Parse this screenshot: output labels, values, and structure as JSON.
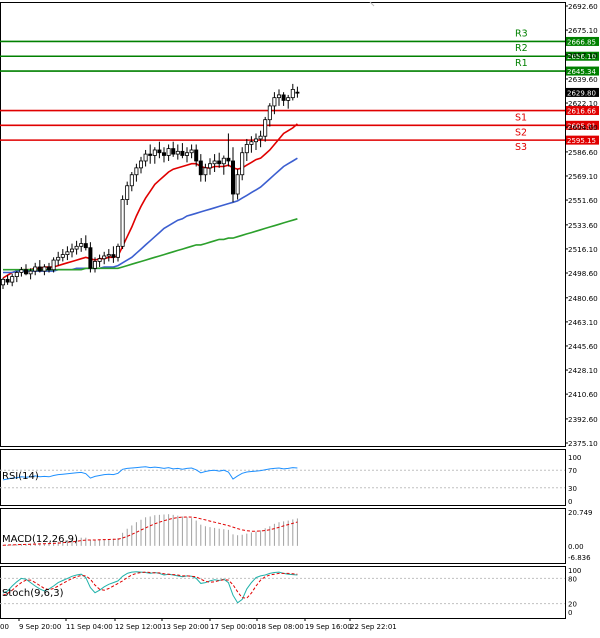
{
  "chart_data": {
    "type": "candlestick",
    "price_axis": {
      "min": 2375.1,
      "max": 2692.6,
      "ticks": [
        "2692.60",
        "2675.10",
        "2657.10",
        "2639.60",
        "2622.10",
        "2604.60",
        "2586.60",
        "2569.10",
        "2551.60",
        "2533.60",
        "2516.10",
        "2498.60",
        "2480.60",
        "2463.10",
        "2445.60",
        "2428.10",
        "2410.60",
        "2392.60",
        "2375.10"
      ]
    },
    "x_labels": [
      "9 Sep 20:00",
      "11 Sep 04:00",
      "12 Sep 12:00",
      "13 Sep 20:00",
      "17 Sep 00:00",
      "18 Sep 08:00",
      "19 Sep 16:00",
      "22 Sep 22:01"
    ],
    "x_label_left_fragment": "00",
    "last_price": "2629.80",
    "levels": [
      {
        "name": "R3",
        "value": 2666.85,
        "label": "2666.85",
        "color": "#008000"
      },
      {
        "name": "R2",
        "value": 2656.1,
        "label": "2656.10",
        "color": "#008000"
      },
      {
        "name": "R1",
        "value": 2645.34,
        "label": "2645.34",
        "color": "#008000"
      },
      {
        "name": "S1",
        "value": 2616.66,
        "label": "2616.66",
        "color": "#e00000"
      },
      {
        "name": "S2",
        "value": 2605.91,
        "label": "2605.91",
        "color": "#e00000"
      },
      {
        "name": "S3",
        "value": 2595.15,
        "label": "2595.15",
        "color": "#e00000"
      }
    ],
    "candles": [
      [
        2490,
        2495,
        2487,
        2494
      ],
      [
        2494,
        2497,
        2490,
        2492
      ],
      [
        2492,
        2498,
        2489,
        2496
      ],
      [
        2496,
        2500,
        2492,
        2499
      ],
      [
        2499,
        2503,
        2496,
        2501
      ],
      [
        2501,
        2505,
        2497,
        2498
      ],
      [
        2498,
        2502,
        2494,
        2500
      ],
      [
        2500,
        2506,
        2497,
        2503
      ],
      [
        2503,
        2508,
        2499,
        2500
      ],
      [
        2500,
        2505,
        2497,
        2503
      ],
      [
        2503,
        2506,
        2499,
        2501
      ],
      [
        2501,
        2510,
        2499,
        2508
      ],
      [
        2508,
        2514,
        2504,
        2510
      ],
      [
        2510,
        2516,
        2507,
        2512
      ],
      [
        2512,
        2518,
        2508,
        2514
      ],
      [
        2514,
        2520,
        2510,
        2516
      ],
      [
        2516,
        2522,
        2512,
        2518
      ],
      [
        2518,
        2524,
        2514,
        2520
      ],
      [
        2520,
        2526,
        2515,
        2517
      ],
      [
        2517,
        2521,
        2499,
        2502
      ],
      [
        2502,
        2510,
        2499,
        2507
      ],
      [
        2507,
        2512,
        2503,
        2509
      ],
      [
        2509,
        2514,
        2505,
        2511
      ],
      [
        2511,
        2516,
        2507,
        2512
      ],
      [
        2512,
        2518,
        2506,
        2510
      ],
      [
        2510,
        2520,
        2507,
        2518
      ],
      [
        2518,
        2555,
        2516,
        2552
      ],
      [
        2552,
        2565,
        2548,
        2562
      ],
      [
        2562,
        2572,
        2558,
        2570
      ],
      [
        2570,
        2578,
        2565,
        2575
      ],
      [
        2575,
        2583,
        2571,
        2580
      ],
      [
        2580,
        2588,
        2576,
        2585
      ],
      [
        2585,
        2592,
        2578,
        2584
      ],
      [
        2584,
        2590,
        2578,
        2588
      ],
      [
        2588,
        2594,
        2582,
        2586
      ],
      [
        2586,
        2590,
        2579,
        2584
      ],
      [
        2584,
        2592,
        2580,
        2589
      ],
      [
        2589,
        2594,
        2583,
        2585
      ],
      [
        2585,
        2592,
        2581,
        2587
      ],
      [
        2587,
        2593,
        2582,
        2584
      ],
      [
        2584,
        2590,
        2579,
        2586
      ],
      [
        2586,
        2592,
        2582,
        2588
      ],
      [
        2588,
        2592,
        2576,
        2580
      ],
      [
        2580,
        2585,
        2565,
        2570
      ],
      [
        2570,
        2578,
        2565,
        2575
      ],
      [
        2575,
        2582,
        2570,
        2578
      ],
      [
        2578,
        2585,
        2572,
        2580
      ],
      [
        2580,
        2586,
        2575,
        2578
      ],
      [
        2578,
        2584,
        2570,
        2582
      ],
      [
        2582,
        2600,
        2576,
        2580
      ],
      [
        2580,
        2590,
        2550,
        2556
      ],
      [
        2556,
        2574,
        2552,
        2570
      ],
      [
        2570,
        2590,
        2566,
        2586
      ],
      [
        2586,
        2596,
        2580,
        2592
      ],
      [
        2592,
        2598,
        2586,
        2594
      ],
      [
        2594,
        2600,
        2588,
        2596
      ],
      [
        2596,
        2602,
        2590,
        2598
      ],
      [
        2598,
        2612,
        2594,
        2610
      ],
      [
        2610,
        2622,
        2605,
        2620
      ],
      [
        2620,
        2630,
        2614,
        2626
      ],
      [
        2626,
        2632,
        2620,
        2628
      ],
      [
        2628,
        2630,
        2620,
        2624
      ],
      [
        2624,
        2628,
        2618,
        2626
      ],
      [
        2626,
        2636,
        2624,
        2632
      ],
      [
        2630,
        2634,
        2626,
        2629.8
      ]
    ],
    "ma_series": [
      {
        "name": "MA fast",
        "color": "#e00000",
        "values": [
          2495,
          2497,
          2499,
          2500,
          2501,
          2501,
          2501,
          2502,
          2502,
          2503,
          2503,
          2503,
          2504,
          2505,
          2506,
          2507,
          2508,
          2509,
          2510,
          2509,
          2508,
          2509,
          2509,
          2510,
          2510,
          2511,
          2518,
          2525,
          2532,
          2540,
          2547,
          2553,
          2558,
          2563,
          2566,
          2569,
          2572,
          2574,
          2575,
          2576,
          2577,
          2578,
          2578,
          2576,
          2575,
          2575,
          2576,
          2576,
          2576,
          2577,
          2575,
          2574,
          2575,
          2577,
          2579,
          2581,
          2582,
          2585,
          2588,
          2592,
          2596,
          2600,
          2602,
          2604,
          2607
        ]
      },
      {
        "name": "MA medium",
        "color": "#3c5fd0",
        "values": [
          2499,
          2499,
          2499,
          2500,
          2500,
          2500,
          2500,
          2500,
          2500,
          2500,
          2500,
          2500,
          2501,
          2501,
          2501,
          2501,
          2502,
          2502,
          2502,
          2502,
          2502,
          2502,
          2503,
          2503,
          2503,
          2504,
          2506,
          2508,
          2510,
          2513,
          2516,
          2519,
          2522,
          2525,
          2528,
          2531,
          2533,
          2535,
          2537,
          2538,
          2540,
          2541,
          2542,
          2543,
          2544,
          2545,
          2546,
          2547,
          2548,
          2549,
          2550,
          2551,
          2553,
          2555,
          2557,
          2559,
          2561,
          2564,
          2567,
          2570,
          2573,
          2576,
          2578,
          2580,
          2582
        ]
      },
      {
        "name": "MA slow",
        "color": "#2ca02c",
        "values": [
          2501,
          2501,
          2501,
          2501,
          2501,
          2501,
          2501,
          2501,
          2501,
          2501,
          2501,
          2501,
          2501,
          2501,
          2501,
          2501,
          2501,
          2501,
          2502,
          2502,
          2502,
          2502,
          2502,
          2502,
          2502,
          2502,
          2503,
          2504,
          2505,
          2506,
          2507,
          2508,
          2509,
          2510,
          2511,
          2512,
          2513,
          2514,
          2515,
          2516,
          2517,
          2518,
          2519,
          2519,
          2520,
          2521,
          2522,
          2523,
          2523,
          2524,
          2524,
          2525,
          2526,
          2527,
          2528,
          2529,
          2530,
          2531,
          2532,
          2533,
          2534,
          2535,
          2536,
          2537,
          2538
        ]
      }
    ],
    "rsi": {
      "label": "RSI(14)",
      "ticks": [
        "100",
        "70",
        "30",
        "0"
      ],
      "levels": [
        70,
        30
      ],
      "values": [
        48,
        50,
        52,
        53,
        55,
        54,
        55,
        57,
        55,
        56,
        55,
        58,
        60,
        61,
        62,
        63,
        64,
        65,
        62,
        52,
        56,
        58,
        60,
        61,
        60,
        63,
        72,
        74,
        75,
        76,
        77,
        78,
        76,
        77,
        76,
        74,
        76,
        73,
        74,
        72,
        74,
        75,
        71,
        64,
        67,
        69,
        70,
        68,
        70,
        66,
        50,
        57,
        63,
        66,
        67,
        68,
        69,
        71,
        73,
        74,
        75,
        73,
        74,
        76,
        75
      ]
    },
    "macd": {
      "label": "MACD(12,26,9)",
      "ticks": [
        "20.749",
        "0.00",
        "-6.836"
      ],
      "range": [
        -6.836,
        20.749
      ],
      "histogram": [
        0.5,
        0.6,
        0.8,
        1.0,
        1.2,
        1.2,
        1.3,
        1.5,
        1.5,
        1.6,
        1.6,
        2.0,
        2.5,
        3.0,
        3.5,
        4.0,
        4.5,
        5.0,
        5.0,
        3.5,
        3.5,
        3.8,
        4.0,
        4.2,
        4.3,
        4.8,
        8.0,
        10.5,
        12.5,
        14.5,
        16.0,
        17.5,
        18.0,
        18.8,
        19.0,
        19.2,
        19.4,
        19.0,
        18.5,
        18.0,
        17.5,
        17.0,
        15.5,
        13.0,
        12.0,
        11.5,
        11.0,
        10.5,
        10.2,
        9.8,
        7.0,
        6.5,
        6.8,
        7.5,
        8.2,
        8.8,
        9.5,
        10.8,
        12.0,
        13.5,
        14.5,
        15.0,
        15.5,
        16.2,
        16.8
      ],
      "signal": [
        0.4,
        0.5,
        0.6,
        0.7,
        0.8,
        0.9,
        1.0,
        1.1,
        1.2,
        1.3,
        1.4,
        1.5,
        1.7,
        1.9,
        2.2,
        2.5,
        2.8,
        3.2,
        3.5,
        3.6,
        3.6,
        3.7,
        3.8,
        3.9,
        4.0,
        4.1,
        4.8,
        5.8,
        7.0,
        8.3,
        9.7,
        11.0,
        12.3,
        13.5,
        14.5,
        15.4,
        16.2,
        16.9,
        17.3,
        17.6,
        17.7,
        17.6,
        17.3,
        16.6,
        15.9,
        15.2,
        14.5,
        13.8,
        13.1,
        12.4,
        11.5,
        10.6,
        9.8,
        9.3,
        9.0,
        9.0,
        9.1,
        9.4,
        9.9,
        10.6,
        11.4,
        12.2,
        13.0,
        13.8,
        14.6
      ]
    },
    "stoch": {
      "label": "Stoch(9,6,3)",
      "ticks_right": [
        "100",
        "80",
        "20",
        "0"
      ],
      "levels": [
        80,
        20
      ],
      "k": [
        45,
        50,
        62,
        72,
        80,
        78,
        70,
        62,
        55,
        50,
        55,
        62,
        70,
        75,
        80,
        85,
        88,
        90,
        82,
        58,
        46,
        52,
        60,
        66,
        70,
        74,
        85,
        92,
        95,
        96,
        95,
        94,
        92,
        94,
        92,
        88,
        90,
        88,
        86,
        84,
        86,
        85,
        80,
        68,
        70,
        74,
        77,
        75,
        78,
        70,
        40,
        22,
        30,
        55,
        70,
        82,
        86,
        88,
        92,
        94,
        95,
        92,
        90,
        89,
        88
      ],
      "d": [
        40,
        44,
        52,
        62,
        70,
        76,
        76,
        70,
        63,
        56,
        53,
        56,
        62,
        68,
        74,
        80,
        84,
        87,
        86,
        78,
        64,
        54,
        52,
        56,
        62,
        68,
        74,
        82,
        88,
        92,
        94,
        95,
        94,
        93,
        93,
        91,
        90,
        89,
        88,
        86,
        86,
        85,
        84,
        78,
        73,
        71,
        72,
        75,
        77,
        76,
        65,
        48,
        34,
        33,
        45,
        62,
        76,
        84,
        88,
        90,
        92,
        92,
        92,
        91,
        90
      ]
    }
  }
}
